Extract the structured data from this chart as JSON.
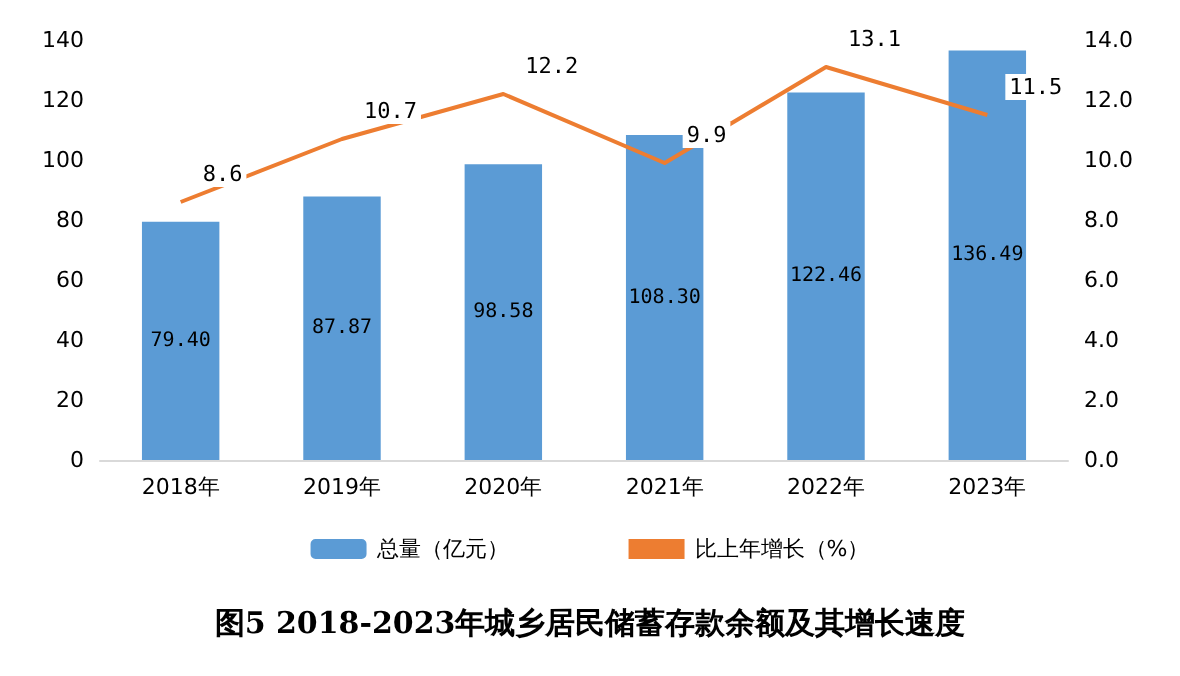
{
  "chart_data": {
    "type": "bar",
    "title": "图5 2018-2023年城乡居民储蓄存款余额及其增长速度",
    "categories": [
      "2018年",
      "2019年",
      "2020年",
      "2021年",
      "2022年",
      "2023年"
    ],
    "series": [
      {
        "name": "总量（亿元）",
        "color": "#5b9bd5",
        "values": [
          79.4,
          87.87,
          98.58,
          108.3,
          122.46,
          136.49
        ],
        "value_labels": [
          "79.40",
          "87.87",
          "98.58",
          "108.30",
          "122.46",
          "136.49"
        ]
      },
      {
        "name": "比上年增长（%）",
        "type": "line",
        "axis": "y2",
        "color": "#ed7d31",
        "values": [
          8.6,
          10.7,
          12.2,
          9.9,
          13.1,
          11.5
        ],
        "value_labels": [
          "8.6",
          "10.7",
          "12.2",
          "9.9",
          "13.1",
          "11.5"
        ]
      }
    ],
    "ylim": [
      0,
      140
    ],
    "yticks": [
      0,
      20,
      40,
      60,
      80,
      100,
      120,
      140
    ],
    "y2lim": [
      0,
      14
    ],
    "y2ticks": [
      {
        "value": 0,
        "label": "0.0"
      },
      {
        "value": 2,
        "label": "2.0"
      },
      {
        "value": 4,
        "label": "4.0"
      },
      {
        "value": 6,
        "label": "6.0"
      },
      {
        "value": 8,
        "label": "8.0"
      },
      {
        "value": 10,
        "label": "10.0"
      },
      {
        "value": 12,
        "label": "12.0"
      },
      {
        "value": 14,
        "label": "14.0"
      }
    ],
    "legend": "bottom",
    "grid": false,
    "marker": "none"
  }
}
